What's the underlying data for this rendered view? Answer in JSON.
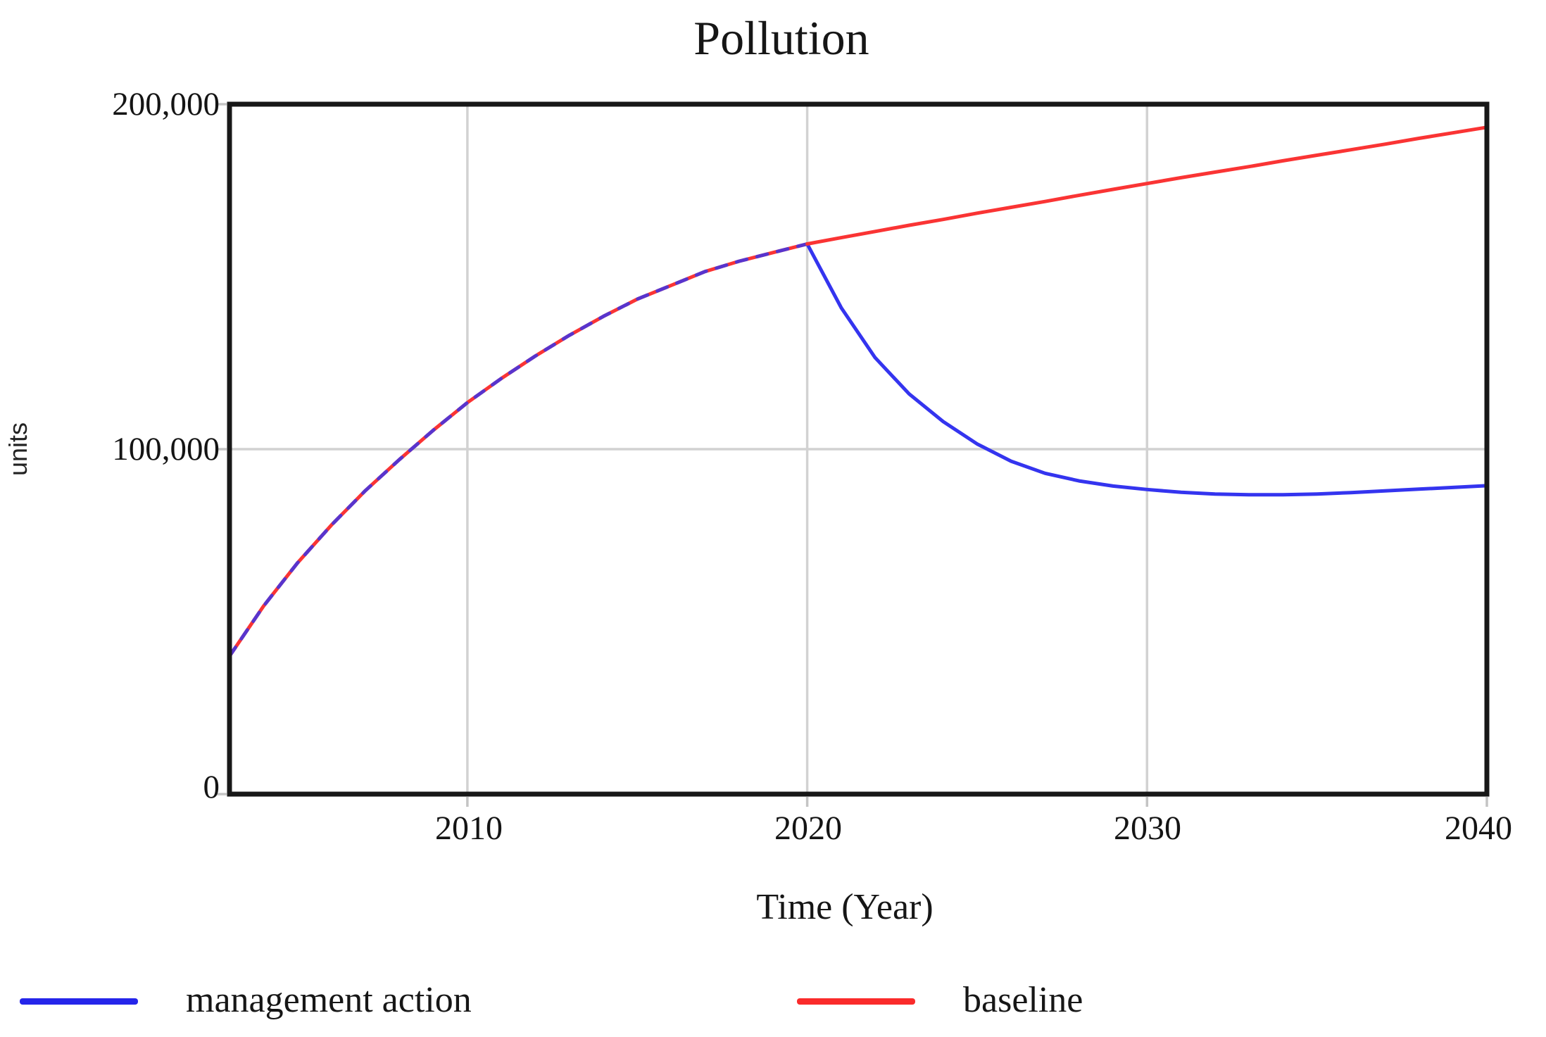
{
  "title": "Pollution",
  "y_axis": {
    "label": "units",
    "ticks": [
      "200,000",
      "100,000",
      "0"
    ]
  },
  "x_axis": {
    "label": "Time (Year)",
    "ticks": [
      "2010",
      "2020",
      "2030",
      "2040"
    ]
  },
  "legend": [
    {
      "label": "management action",
      "color": "#2525ea"
    },
    {
      "label": "baseline",
      "color": "#fa2b2b"
    }
  ],
  "colors": {
    "baseline_line": "#fa3434",
    "management_line": "#3434ef",
    "grid": "#d2d2d2",
    "tick": "#c4c4c4",
    "border": "#181818"
  },
  "chart_data": {
    "type": "line",
    "title": "Pollution",
    "xlabel": "Time (Year)",
    "ylabel": "units",
    "xlim": [
      2003,
      2040
    ],
    "ylim": [
      0,
      200000
    ],
    "x_ticks": [
      2010,
      2020,
      2030,
      2040
    ],
    "y_ticks": [
      0,
      100000,
      200000
    ],
    "grid": true,
    "legend_position": "bottom",
    "split_year": 2020,
    "note": "Both series are identical from 2003 to 2020 (curves overlap, rendered as blended crimson); they diverge at 2020.",
    "x": [
      2003,
      2004,
      2005,
      2006,
      2007,
      2008,
      2009,
      2010,
      2011,
      2012,
      2013,
      2014,
      2015,
      2016,
      2017,
      2018,
      2019,
      2020,
      2021,
      2022,
      2023,
      2024,
      2025,
      2026,
      2027,
      2028,
      2029,
      2030,
      2031,
      2032,
      2033,
      2034,
      2035,
      2036,
      2037,
      2038,
      2039,
      2040
    ],
    "series": [
      {
        "name": "management action",
        "values": [
          40000,
          54500,
          67000,
          78000,
          88000,
          97000,
          105500,
          113500,
          120500,
          127000,
          133000,
          138500,
          143500,
          147500,
          151500,
          154500,
          157000,
          159500,
          141000,
          126500,
          116000,
          108000,
          101500,
          96500,
          93000,
          90800,
          89300,
          88300,
          87500,
          87000,
          86800,
          86800,
          87000,
          87400,
          87900,
          88400,
          88900,
          89400
        ]
      },
      {
        "name": "baseline",
        "values": [
          40000,
          54500,
          67000,
          78000,
          88000,
          97000,
          105500,
          113500,
          120500,
          127000,
          133000,
          138500,
          143500,
          147500,
          151500,
          154500,
          157000,
          159500,
          161300,
          163100,
          164900,
          166600,
          168400,
          170100,
          171800,
          173600,
          175300,
          177000,
          178700,
          180300,
          181900,
          183600,
          185200,
          186800,
          188400,
          190100,
          191700,
          193300
        ]
      }
    ]
  }
}
